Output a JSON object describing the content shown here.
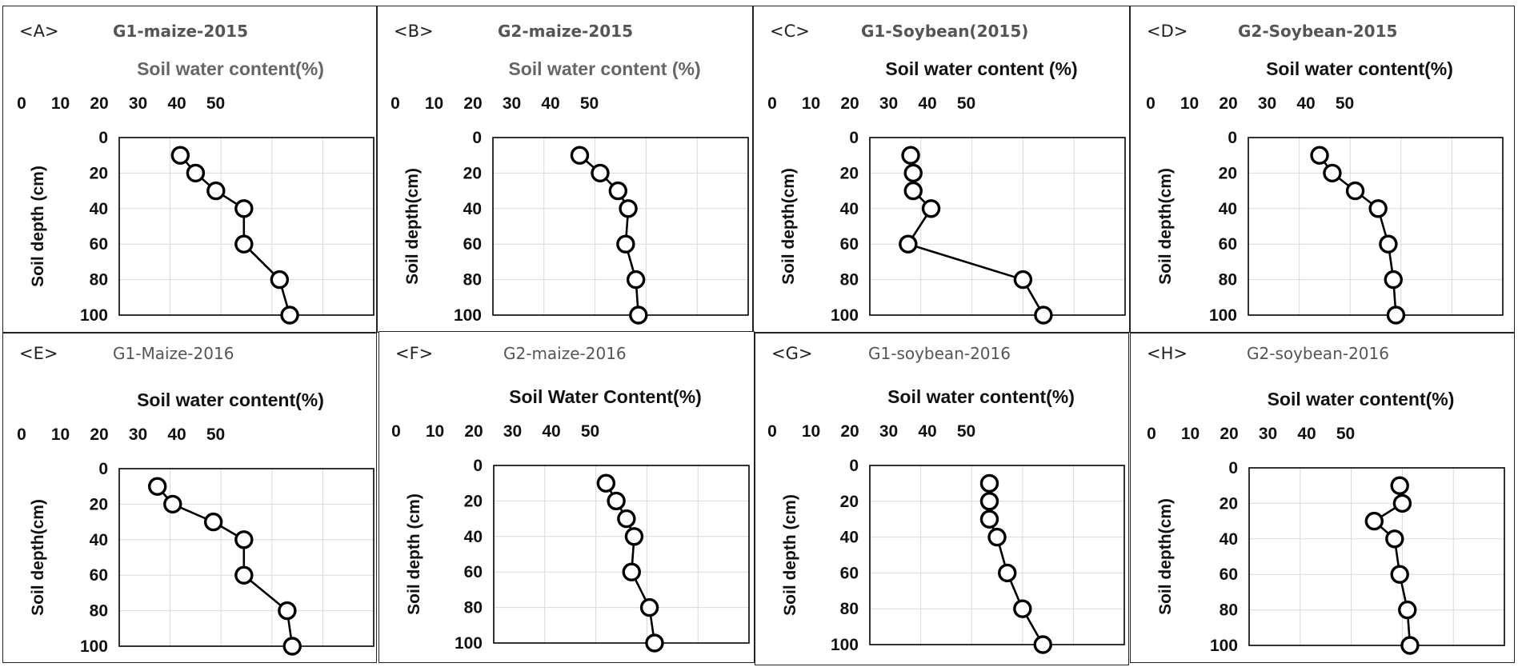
{
  "chart_data": [
    {
      "panel": "<A>",
      "title": "G1-maize-2015",
      "type": "line",
      "xlabel": "Soil water content(%)",
      "ylabel": "Soil depth (cm)",
      "xlim": [
        0,
        50
      ],
      "ylim": [
        0,
        100
      ],
      "x_ticks": [
        "0",
        "10",
        "20",
        "30",
        "40",
        "50"
      ],
      "y_ticks": [
        "0",
        "20",
        "40",
        "60",
        "80",
        "100"
      ],
      "x": [
        12,
        15,
        19,
        24.5,
        24.5,
        31.5,
        33.5
      ],
      "y": [
        10,
        20,
        30,
        40,
        60,
        80,
        100
      ],
      "x_axis_position": "top",
      "y_axis_inverted": true
    },
    {
      "panel": "<B>",
      "title": "G2-maize-2015",
      "type": "line",
      "xlabel": "Soil water content (%)",
      "ylabel": "Soil depth(cm)",
      "xlim": [
        0,
        50
      ],
      "ylim": [
        0,
        100
      ],
      "x_ticks": [
        "0",
        "10",
        "20",
        "30",
        "40",
        "50"
      ],
      "y_ticks": [
        "0",
        "20",
        "40",
        "60",
        "80",
        "100"
      ],
      "x": [
        17,
        21,
        24.5,
        26.5,
        26,
        28,
        28.5
      ],
      "y": [
        10,
        20,
        30,
        40,
        60,
        80,
        100
      ],
      "x_axis_position": "top",
      "y_axis_inverted": true
    },
    {
      "panel": "<C>",
      "title": "G1-Soybean(2015)",
      "type": "line",
      "xlabel": "Soil water content (%)",
      "ylabel": "Soil depth(cm)",
      "xlim": [
        0,
        50
      ],
      "ylim": [
        0,
        100
      ],
      "x_ticks": [
        "0",
        "10",
        "20",
        "30",
        "40",
        "50"
      ],
      "y_ticks": [
        "0",
        "20",
        "40",
        "60",
        "80",
        "100"
      ],
      "x": [
        8,
        8.5,
        8.5,
        12,
        7.5,
        30,
        34
      ],
      "y": [
        10,
        20,
        30,
        40,
        60,
        80,
        100
      ],
      "x_axis_position": "top",
      "y_axis_inverted": true
    },
    {
      "panel": "<D>",
      "title": "G2-Soybean-2015",
      "type": "line",
      "xlabel": "Soil water content(%)",
      "ylabel": "Soil depth(cm)",
      "xlim": [
        0,
        50
      ],
      "ylim": [
        0,
        100
      ],
      "x_ticks": [
        "0",
        "10",
        "20",
        "30",
        "40",
        "50"
      ],
      "y_ticks": [
        "0",
        "20",
        "40",
        "60",
        "80",
        "100"
      ],
      "x": [
        14,
        16.5,
        21,
        25.5,
        27.5,
        28.5,
        29
      ],
      "y": [
        10,
        20,
        30,
        40,
        60,
        80,
        100
      ],
      "x_axis_position": "top",
      "y_axis_inverted": true
    },
    {
      "panel": "<E>",
      "title": "G1-Maize-2016",
      "type": "line",
      "xlabel": "Soil water content(%)",
      "ylabel": "Soil depth(cm)",
      "xlim": [
        0,
        50
      ],
      "ylim": [
        0,
        100
      ],
      "x_ticks": [
        "0",
        "10",
        "20",
        "30",
        "40",
        "50"
      ],
      "y_ticks": [
        "0",
        "20",
        "40",
        "60",
        "80",
        "100"
      ],
      "x": [
        7.5,
        10.5,
        18.5,
        24.5,
        24.5,
        33,
        34
      ],
      "y": [
        10,
        20,
        30,
        40,
        60,
        80,
        100
      ],
      "x_axis_position": "top",
      "y_axis_inverted": true
    },
    {
      "panel": "<F>",
      "title": "G2-maize-2016",
      "type": "line",
      "xlabel": "Soil Water Content(%)",
      "ylabel": "Soil depth (cm)",
      "xlim": [
        0,
        50
      ],
      "ylim": [
        0,
        100
      ],
      "x_ticks": [
        "0",
        "10",
        "20",
        "30",
        "40",
        "50"
      ],
      "y_ticks": [
        "0",
        "20",
        "40",
        "60",
        "80",
        "100"
      ],
      "x": [
        22,
        24,
        26,
        27.5,
        27,
        30.5,
        31.5
      ],
      "y": [
        10,
        20,
        30,
        40,
        60,
        80,
        100
      ],
      "x_axis_position": "top",
      "y_axis_inverted": true
    },
    {
      "panel": "<G>",
      "title": "G1-soybean-2016",
      "type": "line",
      "xlabel": "Soil water content(%)",
      "ylabel": "Soil depth (cm)",
      "xlim": [
        0,
        50
      ],
      "ylim": [
        0,
        100
      ],
      "x_ticks": [
        "0",
        "10",
        "20",
        "30",
        "40",
        "50"
      ],
      "y_ticks": [
        "0",
        "20",
        "40",
        "60",
        "80",
        "100"
      ],
      "x": [
        23.5,
        23.5,
        23.5,
        25,
        27,
        30,
        34
      ],
      "y": [
        10,
        20,
        30,
        40,
        60,
        80,
        100
      ],
      "x_axis_position": "top",
      "y_axis_inverted": true
    },
    {
      "panel": "<H>",
      "title": "G2-soybean-2016",
      "type": "line",
      "xlabel": "Soil water content(%)",
      "ylabel": "Soil depth(cm)",
      "xlim": [
        0,
        50
      ],
      "ylim": [
        0,
        100
      ],
      "x_ticks": [
        "0",
        "10",
        "20",
        "30",
        "40",
        "50"
      ],
      "y_ticks": [
        "0",
        "20",
        "40",
        "60",
        "80",
        "100"
      ],
      "x": [
        29.5,
        30,
        24.5,
        28.5,
        29.5,
        31,
        31.5
      ],
      "y": [
        10,
        20,
        30,
        40,
        60,
        80,
        100
      ],
      "x_axis_position": "top",
      "y_axis_inverted": true
    }
  ]
}
